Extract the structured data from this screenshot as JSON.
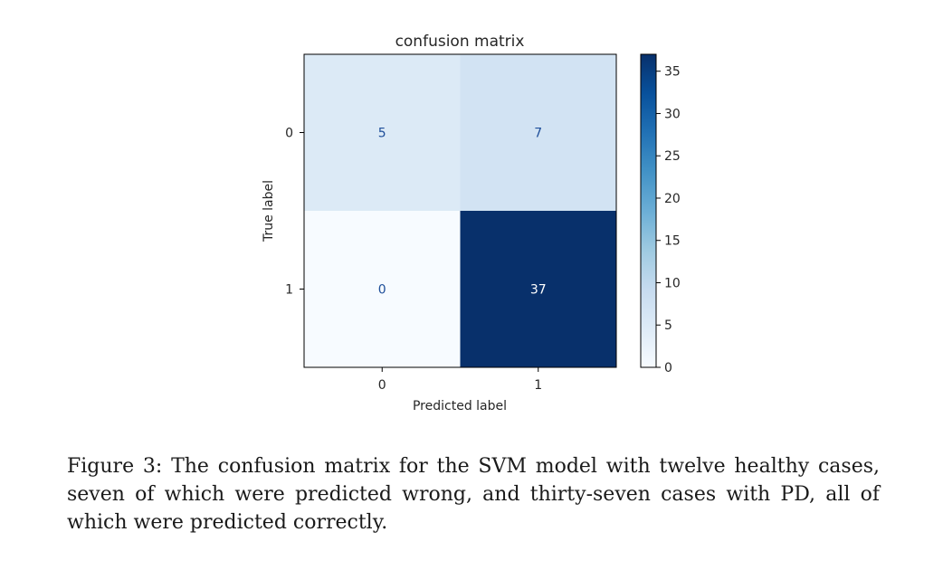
{
  "chart_data": {
    "type": "heatmap",
    "title": "confusion matrix",
    "xlabel": "Predicted label",
    "ylabel": "True label",
    "x_categories": [
      "0",
      "1"
    ],
    "y_categories": [
      "0",
      "1"
    ],
    "values": [
      [
        5,
        7
      ],
      [
        0,
        37
      ]
    ],
    "colormap": "Blues",
    "colorbar": {
      "min": 0,
      "max": 37,
      "ticks": [
        0,
        5,
        10,
        15,
        20,
        25,
        30,
        35
      ]
    },
    "colors": {
      "light_text": "#ffffff",
      "dark_text": "#1f4f9a"
    }
  },
  "caption": "Figure 3: The confusion matrix for the SVM model with twelve healthy cases, seven of which were predicted wrong, and thirty-seven cases with PD, all of which were predicted correctly."
}
